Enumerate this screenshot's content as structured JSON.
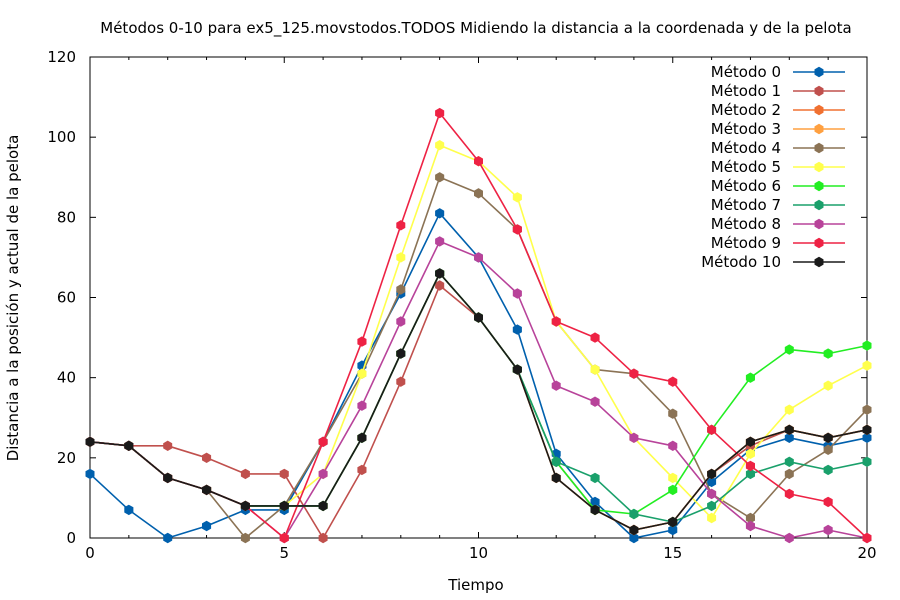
{
  "chart_data": {
    "type": "line",
    "title": "Métodos 0-10 para ex5_125.movstodos.TODOS Midiendo la distancia a la coordenada y de la pelota",
    "xlabel": "Tiempo",
    "ylabel": "Distancia a la posición y actual de la pelota",
    "xlim": [
      0,
      20
    ],
    "ylim": [
      0,
      120
    ],
    "xticks": [
      "0",
      "5",
      "10",
      "15",
      "20"
    ],
    "yticks": [
      "0",
      "20",
      "40",
      "60",
      "80",
      "100",
      "120"
    ],
    "grid": false,
    "legend_position": "top-right",
    "x": [
      0,
      1,
      2,
      3,
      4,
      5,
      6,
      7,
      8,
      9,
      10,
      11,
      12,
      13,
      14,
      15,
      16,
      17,
      18,
      19,
      20
    ],
    "series": [
      {
        "name": "Método 0",
        "color": "#0060ad",
        "values": [
          16,
          7,
          0,
          3,
          7,
          7,
          24,
          43,
          61,
          81,
          70,
          52,
          21,
          9,
          0,
          2,
          14,
          22,
          25,
          23,
          25
        ]
      },
      {
        "name": "Método 1",
        "color": "#c0504d",
        "values": [
          24,
          23,
          23,
          20,
          16,
          16,
          0,
          17,
          39,
          63,
          55,
          42,
          19,
          7,
          2,
          4,
          16,
          23,
          27,
          25,
          27
        ]
      },
      {
        "name": "Método 2",
        "color": "#f07030",
        "values": [
          24,
          23,
          15,
          12,
          8,
          8,
          8,
          25,
          46,
          66,
          55,
          42,
          15,
          7,
          2,
          4,
          16,
          24,
          27,
          25,
          27
        ]
      },
      {
        "name": "Método 3",
        "color": "#ffa040",
        "values": [
          24,
          23,
          15,
          12,
          8,
          8,
          8,
          25,
          46,
          66,
          55,
          42,
          15,
          7,
          2,
          4,
          16,
          24,
          27,
          25,
          27
        ]
      },
      {
        "name": "Método 4",
        "color": "#8b7355",
        "values": [
          24,
          23,
          15,
          12,
          0,
          8,
          24,
          41,
          62,
          90,
          86,
          77,
          54,
          42,
          41,
          31,
          11,
          5,
          16,
          22,
          32
        ]
      },
      {
        "name": "Método 5",
        "color": "#ffff4c",
        "values": [
          24,
          23,
          15,
          12,
          8,
          8,
          16,
          41,
          70,
          98,
          94,
          85,
          54,
          42,
          25,
          15,
          5,
          21,
          32,
          38,
          43
        ]
      },
      {
        "name": "Método 6",
        "color": "#22ee22",
        "values": [
          24,
          23,
          15,
          12,
          8,
          8,
          8,
          25,
          46,
          66,
          55,
          42,
          19,
          7,
          6,
          12,
          27,
          40,
          47,
          46,
          48
        ]
      },
      {
        "name": "Método 7",
        "color": "#1aa06b",
        "values": [
          24,
          23,
          15,
          12,
          8,
          8,
          8,
          25,
          46,
          66,
          55,
          42,
          19,
          15,
          6,
          4,
          8,
          16,
          19,
          17,
          19
        ]
      },
      {
        "name": "Método 8",
        "color": "#b8439a",
        "values": [
          24,
          23,
          15,
          12,
          8,
          0,
          16,
          33,
          54,
          74,
          70,
          61,
          38,
          34,
          25,
          23,
          11,
          3,
          0,
          2,
          0
        ]
      },
      {
        "name": "Método 9",
        "color": "#ee2244",
        "values": [
          24,
          23,
          15,
          12,
          8,
          0,
          24,
          49,
          78,
          106,
          94,
          77,
          54,
          50,
          41,
          39,
          27,
          18,
          11,
          9,
          0
        ]
      },
      {
        "name": "Método 10",
        "color": "#1a1a1a",
        "values": [
          24,
          23,
          15,
          12,
          8,
          8,
          8,
          25,
          46,
          66,
          55,
          42,
          15,
          7,
          2,
          4,
          16,
          24,
          27,
          25,
          27
        ]
      }
    ]
  }
}
